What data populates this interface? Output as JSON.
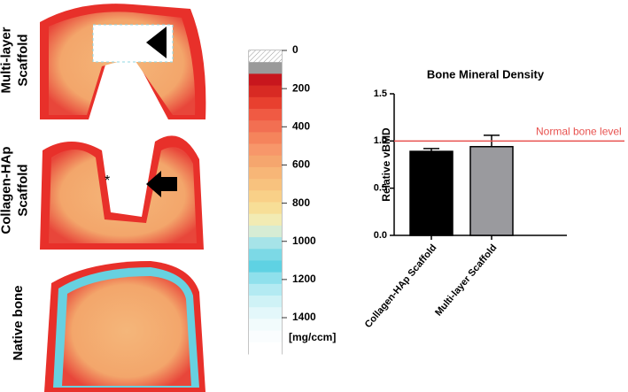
{
  "panels": [
    {
      "label": [
        "Multi-layer",
        "Scaffold"
      ]
    },
    {
      "label": [
        "Collagen-HAp",
        "Scaffold"
      ],
      "marker": "*"
    },
    {
      "label": [
        "Native bone"
      ]
    }
  ],
  "colorbar": {
    "ticks": [
      0,
      200,
      400,
      600,
      800,
      1000,
      1200,
      1400
    ],
    "lim": [
      0,
      1590
    ],
    "unit": "[mg/ccm]"
  },
  "chart_data": {
    "type": "bar",
    "title": "Bone Mineral Density",
    "y_label": "Relative vBMD",
    "categories": [
      "Collagen-HAp Scaffold",
      "Multi-layer Scaffold"
    ],
    "values": [
      0.89,
      0.94
    ],
    "errors": [
      0.03,
      0.12
    ],
    "colors": [
      "#000000",
      "#9a9a9e"
    ],
    "ylim": [
      0,
      1.5
    ],
    "yticks": [
      {
        "value": 0,
        "label": "0.0"
      },
      {
        "value": 0.5,
        "label": "0.5"
      },
      {
        "value": 1,
        "label": "1.0"
      },
      {
        "value": 1.5,
        "label": "1.5"
      }
    ],
    "reference_line": {
      "value": 1,
      "label": "Normal bone level",
      "color": "#e8524f"
    }
  }
}
